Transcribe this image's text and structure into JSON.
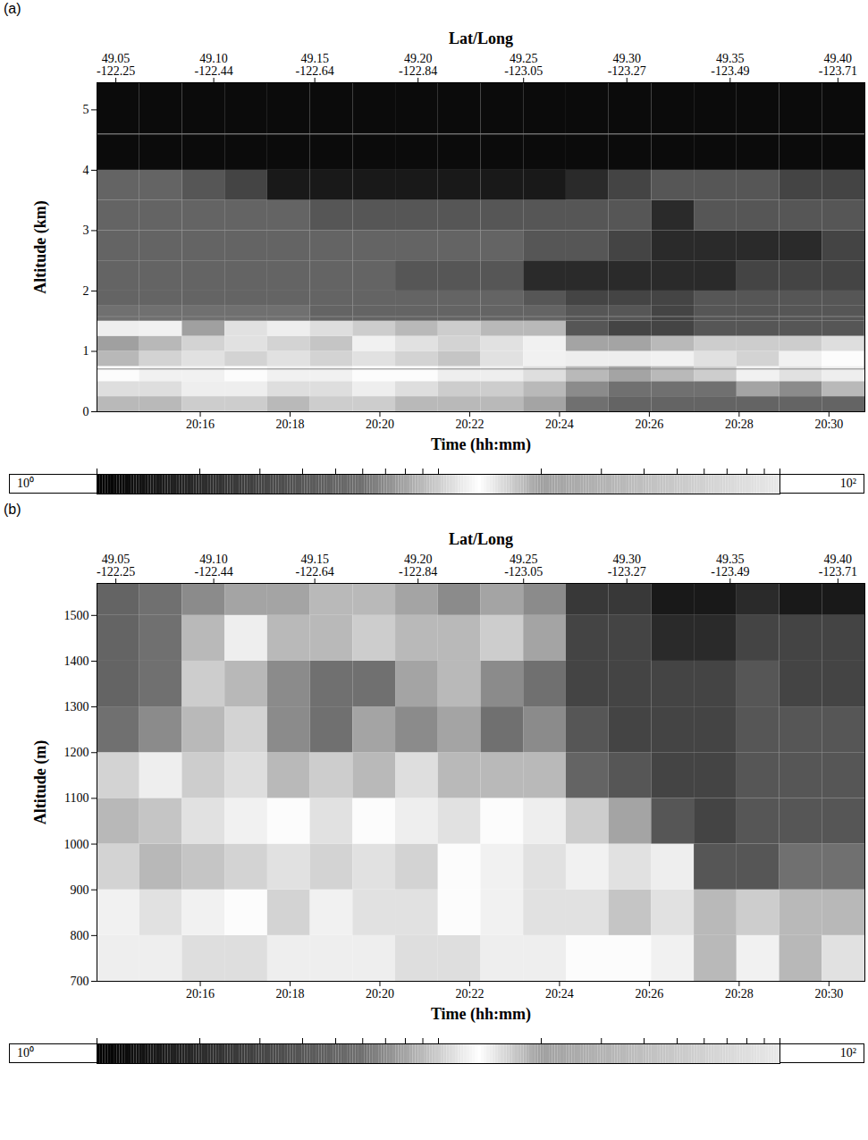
{
  "chart_data": [
    {
      "type": "heatmap",
      "panel_label": "(a)",
      "x_label": "Time (hh:mm)",
      "y_label": "Altitude (km)",
      "xlim": [
        1213.7,
        1230.8
      ],
      "xticks": [
        {
          "value": 1216,
          "label": "20:16"
        },
        {
          "value": 1218,
          "label": "20:18"
        },
        {
          "value": 1220,
          "label": "20:20"
        },
        {
          "value": 1222,
          "label": "20:22"
        },
        {
          "value": 1224,
          "label": "20:24"
        },
        {
          "value": 1226,
          "label": "20:26"
        },
        {
          "value": 1228,
          "label": "20:28"
        },
        {
          "value": 1230,
          "label": "20:30"
        }
      ],
      "top_axis": {
        "label": "Lat/Long",
        "ticks": [
          {
            "value": 1214.12,
            "label": "49.05\n-122.25"
          },
          {
            "value": 1216.3,
            "label": "49.10\n-122.44"
          },
          {
            "value": 1218.55,
            "label": "49.15\n-122.64"
          },
          {
            "value": 1220.85,
            "label": "49.20\n-122.84"
          },
          {
            "value": 1223.2,
            "label": "49.25\n-123.05"
          },
          {
            "value": 1225.5,
            "label": "49.30\n-123.27"
          },
          {
            "value": 1227.8,
            "label": "49.35\n-123.49"
          },
          {
            "value": 1230.2,
            "label": "49.40\n-123.71"
          }
        ]
      },
      "ylim": [
        0,
        5.45
      ],
      "yticks": [
        0,
        1,
        2,
        3,
        4,
        5
      ],
      "zoom_box_ylim": [
        0.7,
        1.57
      ],
      "reference_line_y": 4.6,
      "x_edges": [
        1213.7,
        1214.65,
        1215.6,
        1216.55,
        1217.5,
        1218.45,
        1219.4,
        1220.35,
        1221.3,
        1222.25,
        1223.2,
        1224.15,
        1225.1,
        1226.05,
        1227.0,
        1227.95,
        1228.9,
        1229.85,
        1230.8
      ],
      "y_edges": [
        0,
        0.25,
        0.5,
        0.75,
        1.0,
        1.25,
        1.5,
        1.75,
        2.0,
        2.5,
        3.0,
        3.5,
        4.0,
        4.6,
        5.45
      ],
      "cells": [
        [
          9,
          9,
          10,
          10,
          9,
          10,
          10,
          9,
          9,
          9,
          8,
          6,
          5,
          5,
          5,
          5,
          5,
          5
        ],
        [
          11,
          11,
          12,
          12,
          11,
          11,
          12,
          11,
          10,
          10,
          9,
          7,
          6,
          6,
          6,
          8,
          7,
          9
        ],
        [
          13,
          14,
          14,
          13,
          14,
          14,
          13,
          13,
          12,
          12,
          11,
          9,
          8,
          9,
          10,
          14,
          15,
          12
        ],
        [
          18,
          16,
          15,
          16,
          15,
          16,
          15,
          16,
          17,
          15,
          14,
          12,
          12,
          14,
          15,
          16,
          14,
          13
        ],
        [
          20,
          18,
          16,
          15,
          16,
          17,
          14,
          15,
          16,
          15,
          14,
          8,
          8,
          9,
          10,
          10,
          10,
          11
        ],
        [
          12,
          14,
          20,
          15,
          12,
          11,
          10,
          9,
          10,
          9,
          9,
          4,
          3,
          3,
          4,
          4,
          4,
          4
        ],
        [
          6,
          6,
          6,
          6,
          6,
          5,
          5,
          5,
          5,
          5,
          5,
          4,
          4,
          3,
          4,
          4,
          4,
          4
        ],
        [
          5,
          5,
          5,
          5,
          5,
          5,
          5,
          5,
          5,
          5,
          4,
          3,
          3,
          3,
          4,
          4,
          4,
          4
        ],
        [
          5,
          5,
          5,
          5,
          5,
          5,
          5,
          4,
          4,
          4,
          2,
          2,
          2,
          2,
          2,
          3,
          3,
          3
        ],
        [
          5,
          5,
          5,
          5,
          5,
          5,
          5,
          5,
          5,
          5,
          4,
          4,
          3,
          2,
          2,
          2,
          2,
          3
        ],
        [
          5,
          5,
          5,
          5,
          5,
          4,
          4,
          4,
          4,
          4,
          4,
          4,
          4,
          2,
          4,
          4,
          4,
          4
        ],
        [
          5,
          5,
          4,
          3,
          1.5,
          1.5,
          1.5,
          1.5,
          1.5,
          1.5,
          1.5,
          2,
          3,
          4,
          4,
          4,
          3,
          3
        ],
        [
          1.2,
          1.2,
          1.2,
          1.2,
          1.2,
          1.2,
          1.2,
          1.2,
          1.2,
          1.2,
          1.2,
          1.2,
          1.2,
          1.2,
          1.2,
          1.2,
          1.2,
          1.2
        ],
        [
          1.2,
          1.2,
          1.2,
          1.2,
          1.2,
          1.2,
          1.2,
          1.2,
          1.2,
          1.2,
          1.2,
          1.2,
          1.2,
          1.2,
          1.2,
          1.2,
          1.2,
          1.2
        ]
      ],
      "colorbar": {
        "lim": [
          1,
          100
        ],
        "log": true,
        "tick_labels": false,
        "ticks": [
          1,
          2,
          3,
          4,
          5,
          6,
          7,
          8,
          9,
          10,
          20,
          30,
          40,
          50,
          60,
          70,
          80,
          90,
          100
        ],
        "end_labels": [
          "10⁰",
          "10²"
        ]
      }
    },
    {
      "type": "heatmap",
      "panel_label": "(b)",
      "x_label": "Time (hh:mm)",
      "y_label": "Altitude (m)",
      "xlim": [
        1213.7,
        1230.8
      ],
      "xticks": [
        {
          "value": 1216,
          "label": "20:16"
        },
        {
          "value": 1218,
          "label": "20:18"
        },
        {
          "value": 1220,
          "label": "20:20"
        },
        {
          "value": 1222,
          "label": "20:22"
        },
        {
          "value": 1224,
          "label": "20:24"
        },
        {
          "value": 1226,
          "label": "20:26"
        },
        {
          "value": 1228,
          "label": "20:28"
        },
        {
          "value": 1230,
          "label": "20:30"
        }
      ],
      "top_axis": {
        "label": "Lat/Long",
        "ticks": [
          {
            "value": 1214.12,
            "label": "49.05\n-122.25"
          },
          {
            "value": 1216.3,
            "label": "49.10\n-122.44"
          },
          {
            "value": 1218.55,
            "label": "49.15\n-122.64"
          },
          {
            "value": 1220.85,
            "label": "49.20\n-122.84"
          },
          {
            "value": 1223.2,
            "label": "49.25\n-123.05"
          },
          {
            "value": 1225.5,
            "label": "49.30\n-123.27"
          },
          {
            "value": 1227.8,
            "label": "49.35\n-123.49"
          },
          {
            "value": 1230.2,
            "label": "49.40\n-123.71"
          }
        ]
      },
      "ylim": [
        700,
        1570
      ],
      "yticks": [
        700,
        800,
        900,
        1000,
        1100,
        1200,
        1300,
        1400,
        1500
      ],
      "x_edges": [
        1213.7,
        1214.65,
        1215.6,
        1216.55,
        1217.5,
        1218.45,
        1219.4,
        1220.35,
        1221.3,
        1222.25,
        1223.2,
        1224.15,
        1225.1,
        1226.05,
        1227.0,
        1227.95,
        1228.9,
        1229.85,
        1230.8
      ],
      "y_edges": [
        700,
        800,
        900,
        1000,
        1100,
        1200,
        1300,
        1400,
        1500,
        1570
      ],
      "cells": [
        [
          12,
          12,
          11,
          11,
          12,
          12,
          12,
          11,
          11,
          12,
          12,
          13,
          13,
          14,
          9,
          14,
          18,
          15
        ],
        [
          14,
          15,
          14,
          13,
          16,
          14,
          15,
          15,
          13,
          14,
          15,
          15,
          17,
          15,
          9,
          10,
          9,
          18
        ],
        [
          16,
          18,
          17,
          16,
          15,
          16,
          15,
          16,
          13,
          14,
          15,
          14,
          15,
          12,
          4,
          4,
          6,
          6
        ],
        [
          18,
          17,
          15,
          14,
          13,
          15,
          13,
          12,
          15,
          13,
          12,
          10,
          8,
          4,
          3,
          4,
          4,
          4
        ],
        [
          16,
          12,
          10,
          11,
          9,
          10,
          9,
          11,
          9,
          9,
          9,
          5,
          4,
          3,
          3,
          4,
          4,
          4
        ],
        [
          6,
          7,
          9,
          16,
          7,
          6,
          8,
          7,
          8,
          6,
          7,
          4,
          3,
          3,
          3,
          4,
          4,
          4
        ],
        [
          5,
          6,
          10,
          18,
          7,
          6,
          6,
          8,
          9,
          7,
          6,
          3,
          3,
          3,
          3,
          4,
          3,
          3
        ],
        [
          5,
          6,
          9,
          12,
          9,
          9,
          10,
          9,
          9,
          10,
          8,
          3,
          3,
          2,
          2,
          3,
          3,
          3
        ],
        [
          5,
          6,
          7,
          8,
          8,
          9,
          9,
          8,
          7,
          8,
          7,
          2.5,
          2.5,
          1.5,
          1.5,
          2,
          1.5,
          1.5
        ]
      ],
      "colorbar": {
        "lim": [
          1,
          100
        ],
        "log": true,
        "tick_labels": false,
        "ticks": [
          1,
          2,
          3,
          4,
          5,
          6,
          7,
          8,
          9,
          10,
          20,
          30,
          40,
          50,
          60,
          70,
          80,
          90,
          100
        ],
        "end_labels": [
          "10⁰",
          "10²"
        ]
      }
    }
  ]
}
